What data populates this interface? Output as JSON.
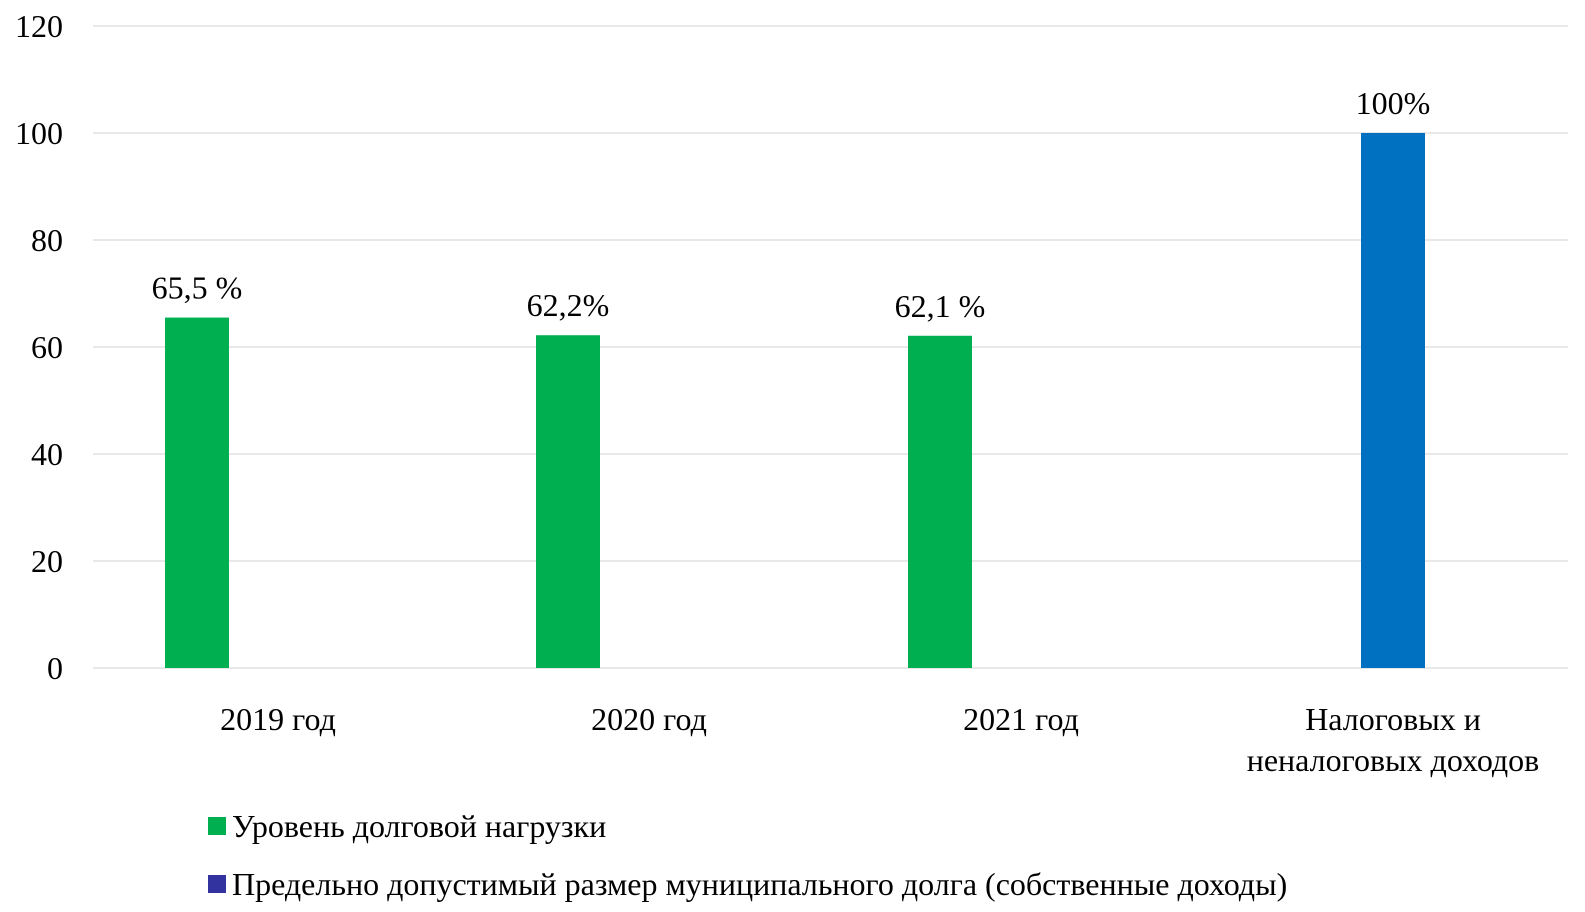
{
  "chart_data": {
    "type": "bar",
    "categories": [
      [
        "2019 год"
      ],
      [
        "2020 год"
      ],
      [
        "2021 год"
      ],
      [
        "Налоговых и",
        "неналоговых доходов"
      ]
    ],
    "series": [
      {
        "name": "Уровень долговой нагрузки",
        "color": "#00B050",
        "values": [
          65.5,
          62.2,
          62.1,
          null
        ],
        "labels": [
          "65,5 %",
          "62,2%",
          "62,1 %",
          null
        ]
      },
      {
        "name": "Предельно допустимый размер муниципального долга (собственные доходы)",
        "color": "#0070C0",
        "legend_color": "#3333A0",
        "values": [
          null,
          null,
          null,
          100
        ],
        "labels": [
          null,
          null,
          null,
          "100%"
        ]
      }
    ],
    "ylim": [
      0,
      120
    ],
    "yticks": [
      0,
      20,
      40,
      60,
      80,
      100,
      120
    ],
    "grid": true,
    "legend_position": "bottom"
  }
}
